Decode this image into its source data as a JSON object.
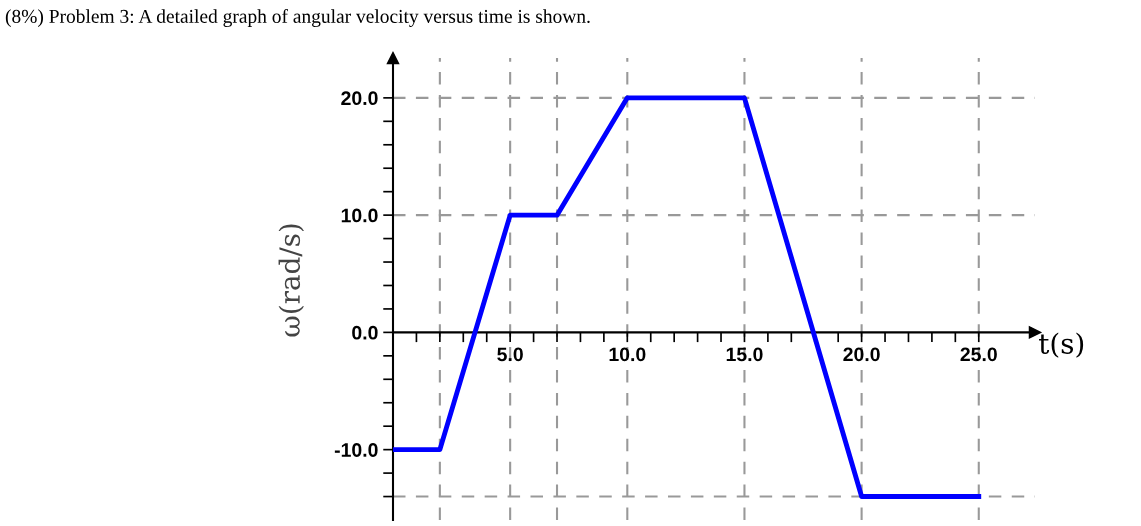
{
  "chart_data": {
    "type": "line",
    "title": "(8%) Problem 3: A detailed graph of angular velocity versus time is shown.",
    "xlabel": "t(s)",
    "ylabel": "ω(rad/s)",
    "x": [
      0,
      2,
      5,
      7,
      10,
      15,
      20,
      25
    ],
    "series": [
      {
        "color": "#0000ff",
        "values": [
          -10,
          -10,
          10,
          10,
          20,
          20,
          -14,
          -14
        ]
      }
    ],
    "xlim": [
      0,
      27.4
    ],
    "ylim": [
      -16,
      23.4
    ],
    "xticks": [
      {
        "value": 1,
        "label": null
      },
      {
        "value": 2,
        "label": null
      },
      {
        "value": 3,
        "label": null
      },
      {
        "value": 4,
        "label": null
      },
      {
        "value": 5,
        "label": "5.0"
      },
      {
        "value": 6,
        "label": null
      },
      {
        "value": 7,
        "label": null
      },
      {
        "value": 8,
        "label": null
      },
      {
        "value": 9,
        "label": null
      },
      {
        "value": 10,
        "label": "10.0"
      },
      {
        "value": 11,
        "label": null
      },
      {
        "value": 12,
        "label": null
      },
      {
        "value": 13,
        "label": null
      },
      {
        "value": 14,
        "label": null
      },
      {
        "value": 15,
        "label": "15.0"
      },
      {
        "value": 16,
        "label": null
      },
      {
        "value": 17,
        "label": null
      },
      {
        "value": 18,
        "label": null
      },
      {
        "value": 19,
        "label": null
      },
      {
        "value": 20,
        "label": "20.0"
      },
      {
        "value": 21,
        "label": null
      },
      {
        "value": 22,
        "label": null
      },
      {
        "value": 23,
        "label": null
      },
      {
        "value": 24,
        "label": null
      },
      {
        "value": 25,
        "label": "25.0"
      }
    ],
    "yticks": [
      {
        "value": -14,
        "label": null
      },
      {
        "value": -12,
        "label": null
      },
      {
        "value": -10,
        "label": "-10.0"
      },
      {
        "value": -8,
        "label": null
      },
      {
        "value": -6,
        "label": null
      },
      {
        "value": -4,
        "label": null
      },
      {
        "value": -2,
        "label": null
      },
      {
        "value": 0,
        "label": "0.0"
      },
      {
        "value": 2,
        "label": null
      },
      {
        "value": 4,
        "label": null
      },
      {
        "value": 6,
        "label": null
      },
      {
        "value": 8,
        "label": null
      },
      {
        "value": 10,
        "label": "10.0"
      },
      {
        "value": 12,
        "label": null
      },
      {
        "value": 14,
        "label": null
      },
      {
        "value": 16,
        "label": null
      },
      {
        "value": 18,
        "label": null
      },
      {
        "value": 20,
        "label": "20.0"
      }
    ],
    "ref_lines": [
      {
        "axis": "x",
        "value": 2,
        "color": "#999999",
        "line_style": "dashed"
      },
      {
        "axis": "x",
        "value": 5,
        "color": "#999999",
        "line_style": "dashed"
      },
      {
        "axis": "x",
        "value": 7,
        "color": "#999999",
        "line_style": "dashed"
      },
      {
        "axis": "x",
        "value": 10,
        "color": "#999999",
        "line_style": "dashed"
      },
      {
        "axis": "x",
        "value": 15,
        "color": "#999999",
        "line_style": "dashed"
      },
      {
        "axis": "x",
        "value": 20,
        "color": "#999999",
        "line_style": "dashed"
      },
      {
        "axis": "x",
        "value": 25,
        "color": "#999999",
        "line_style": "dashed"
      },
      {
        "axis": "y",
        "value": 20,
        "color": "#999999",
        "line_style": "dashed"
      },
      {
        "axis": "y",
        "value": 10,
        "color": "#999999",
        "line_style": "dashed"
      },
      {
        "axis": "y",
        "value": -14,
        "color": "#999999",
        "line_style": "dashed"
      }
    ],
    "grid": false,
    "legend": false,
    "marker": "none",
    "line_style": "solid"
  }
}
